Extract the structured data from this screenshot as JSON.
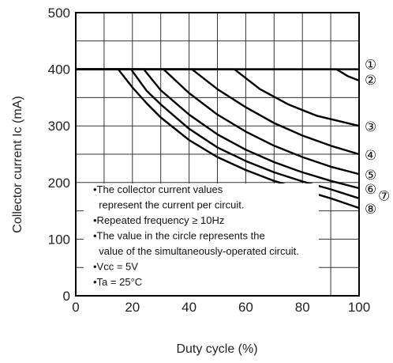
{
  "chart_data": {
    "type": "line",
    "xlabel": "Duty cycle (%)",
    "ylabel": "Collector current  Ic (mA)",
    "xlim": [
      0,
      100
    ],
    "ylim": [
      0,
      500
    ],
    "x_ticks": [
      "0",
      "20",
      "40",
      "60",
      "80",
      "100"
    ],
    "y_ticks": [
      "0",
      "100",
      "200",
      "300",
      "400",
      "500"
    ],
    "grid": true,
    "series": [
      {
        "name": "①",
        "points": [
          [
            0,
            400
          ],
          [
            100,
            400
          ]
        ]
      },
      {
        "name": "②",
        "points": [
          [
            0,
            400
          ],
          [
            92,
            400
          ],
          [
            96,
            388
          ],
          [
            100,
            380
          ]
        ]
      },
      {
        "name": "③",
        "points": [
          [
            0,
            400
          ],
          [
            56,
            400
          ],
          [
            65,
            365
          ],
          [
            75,
            338
          ],
          [
            85,
            318
          ],
          [
            100,
            300
          ]
        ]
      },
      {
        "name": "④",
        "points": [
          [
            0,
            400
          ],
          [
            41,
            400
          ],
          [
            50,
            365
          ],
          [
            60,
            333
          ],
          [
            70,
            305
          ],
          [
            80,
            283
          ],
          [
            90,
            265
          ],
          [
            100,
            250
          ]
        ]
      },
      {
        "name": "⑤",
        "points": [
          [
            0,
            400
          ],
          [
            31,
            400
          ],
          [
            40,
            358
          ],
          [
            50,
            320
          ],
          [
            60,
            290
          ],
          [
            70,
            265
          ],
          [
            80,
            245
          ],
          [
            90,
            228
          ],
          [
            100,
            215
          ]
        ]
      },
      {
        "name": "⑥",
        "points": [
          [
            0,
            400
          ],
          [
            24,
            400
          ],
          [
            30,
            363
          ],
          [
            40,
            320
          ],
          [
            50,
            285
          ],
          [
            60,
            258
          ],
          [
            70,
            236
          ],
          [
            80,
            218
          ],
          [
            90,
            203
          ],
          [
            100,
            190
          ]
        ]
      },
      {
        "name": "⑦",
        "points": [
          [
            0,
            400
          ],
          [
            19.5,
            400
          ],
          [
            25,
            362
          ],
          [
            30,
            338
          ],
          [
            40,
            295
          ],
          [
            50,
            262
          ],
          [
            60,
            238
          ],
          [
            70,
            218
          ],
          [
            80,
            202
          ],
          [
            90,
            188
          ],
          [
            100,
            172
          ]
        ]
      },
      {
        "name": "⑧",
        "points": [
          [
            0,
            400
          ],
          [
            15,
            400
          ],
          [
            20,
            368
          ],
          [
            25,
            340
          ],
          [
            30,
            315
          ],
          [
            40,
            275
          ],
          [
            50,
            245
          ],
          [
            60,
            222
          ],
          [
            70,
            203
          ],
          [
            80,
            187
          ],
          [
            90,
            172
          ],
          [
            100,
            155
          ]
        ]
      }
    ],
    "notes": [
      "•The collector current values",
      "  represent the current per circuit.",
      "•Repeated frequency ≥ 10Hz",
      "•The value in the circle represents the",
      "  value of the simultaneously-operated circuit.",
      "•Vcc = 5V",
      "•Ta = 25°C"
    ],
    "circle_labels": [
      "①",
      "②",
      "③",
      "④",
      "⑤",
      "⑥",
      "⑦",
      "⑧"
    ],
    "circle_label_values": [
      410,
      383,
      300,
      250,
      215,
      190,
      178,
      155
    ]
  }
}
